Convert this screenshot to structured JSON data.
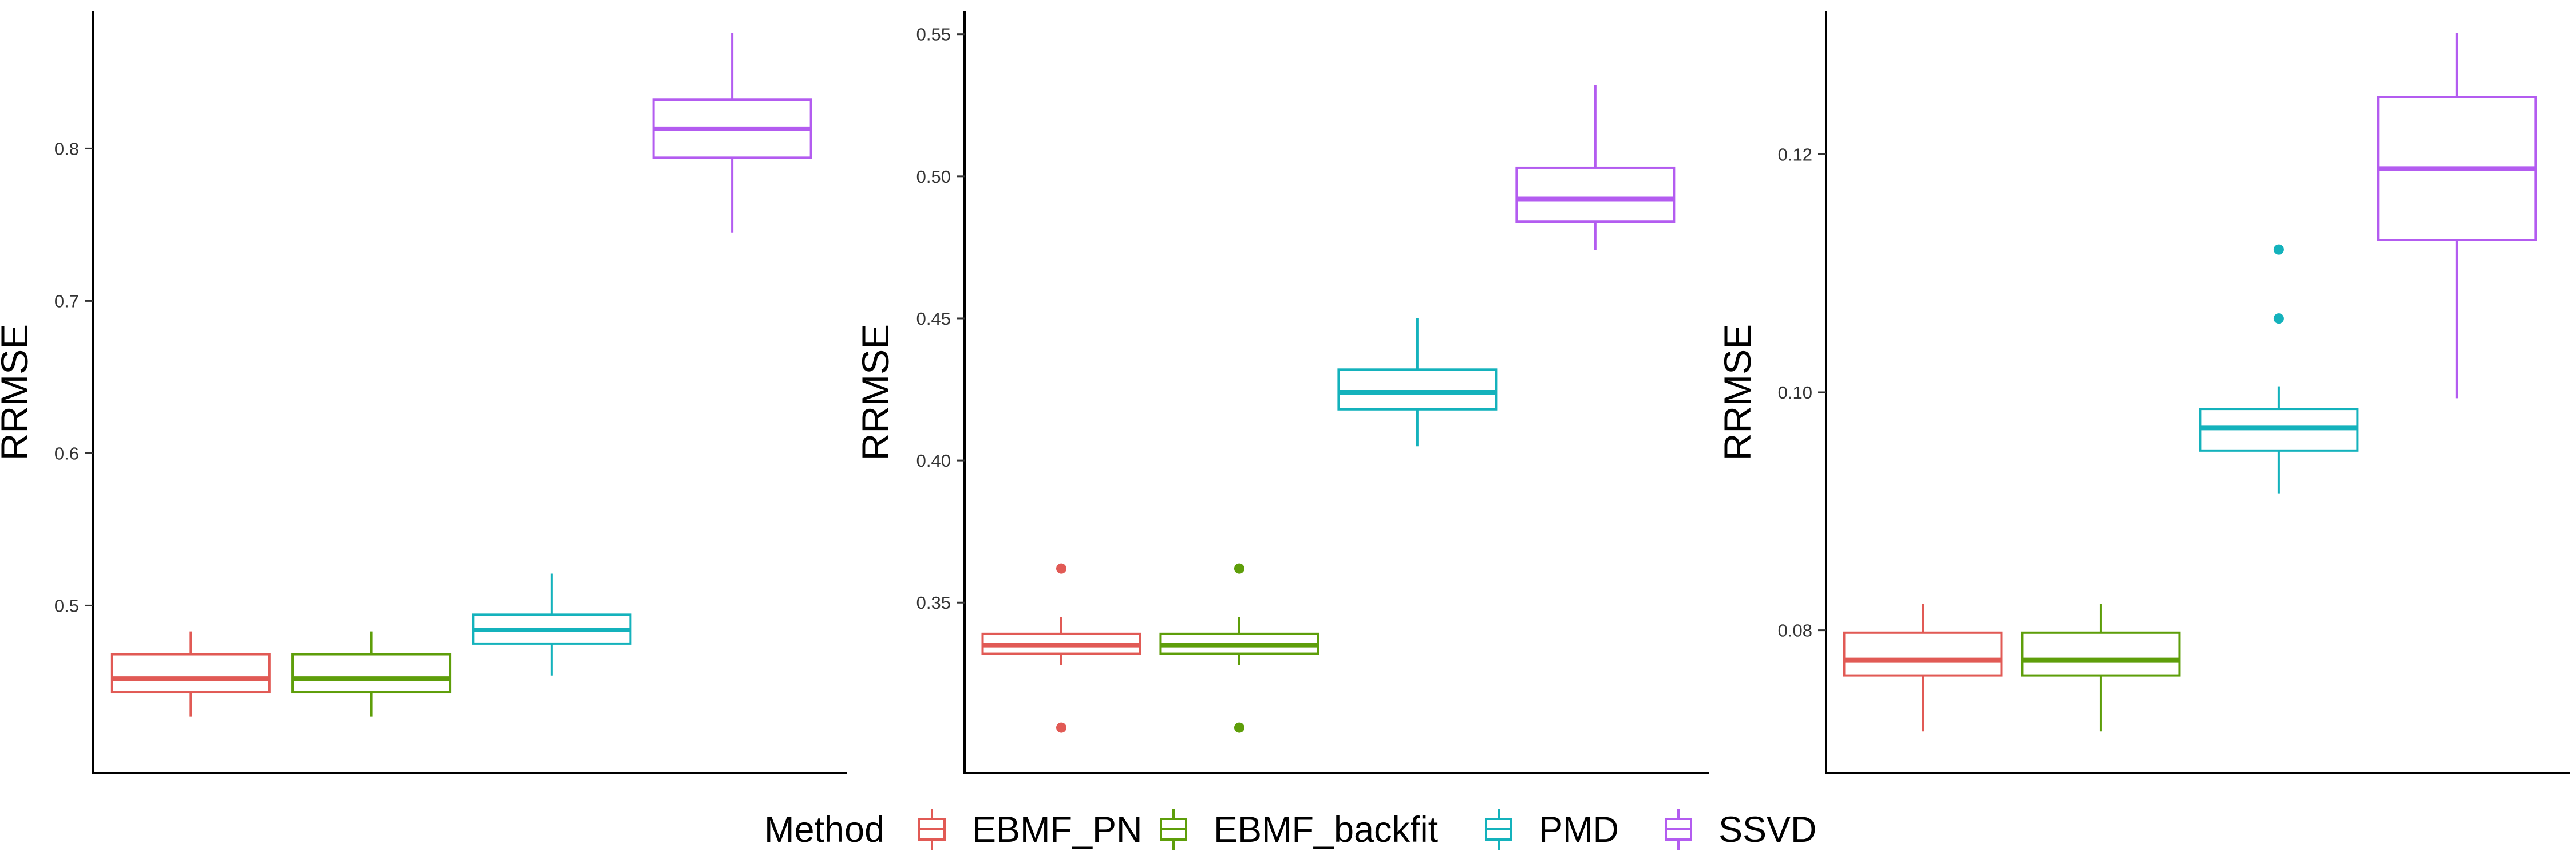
{
  "colors": {
    "EBMF_PN": "#E15A55",
    "EBMF_backfit": "#5E9E0A",
    "PMD": "#14B2BC",
    "SSVD": "#B35CF0"
  },
  "legend": {
    "title": "Method",
    "items": [
      "EBMF_PN",
      "EBMF_backfit",
      "PMD",
      "SSVD"
    ]
  },
  "chart_data": [
    {
      "type": "boxplot",
      "ylabel": "RRMSE",
      "ylim": [
        0.39,
        0.89
      ],
      "yticks": [
        {
          "value": 0.5,
          "label": "0.5"
        },
        {
          "value": 0.6,
          "label": "0.6"
        },
        {
          "value": 0.7,
          "label": "0.7"
        },
        {
          "value": 0.8,
          "label": "0.8"
        }
      ],
      "boxes": [
        {
          "method": "EBMF_PN",
          "min": 0.427,
          "q1": 0.443,
          "median": 0.452,
          "q3": 0.468,
          "max": 0.483,
          "outliers": []
        },
        {
          "method": "EBMF_backfit",
          "min": 0.427,
          "q1": 0.443,
          "median": 0.452,
          "q3": 0.468,
          "max": 0.483,
          "outliers": []
        },
        {
          "method": "PMD",
          "min": 0.454,
          "q1": 0.475,
          "median": 0.484,
          "q3": 0.494,
          "max": 0.521,
          "outliers": []
        },
        {
          "method": "SSVD",
          "min": 0.745,
          "q1": 0.794,
          "median": 0.813,
          "q3": 0.832,
          "max": 0.876,
          "outliers": []
        }
      ]
    },
    {
      "type": "boxplot",
      "ylabel": "RRMSE",
      "ylim": [
        0.29,
        0.558
      ],
      "yticks": [
        {
          "value": 0.35,
          "label": "0.35"
        },
        {
          "value": 0.4,
          "label": "0.40"
        },
        {
          "value": 0.45,
          "label": "0.45"
        },
        {
          "value": 0.5,
          "label": "0.50"
        },
        {
          "value": 0.55,
          "label": "0.55"
        }
      ],
      "boxes": [
        {
          "method": "EBMF_PN",
          "min": 0.328,
          "q1": 0.332,
          "median": 0.335,
          "q3": 0.339,
          "max": 0.345,
          "outliers": [
            0.362,
            0.306
          ]
        },
        {
          "method": "EBMF_backfit",
          "min": 0.328,
          "q1": 0.332,
          "median": 0.335,
          "q3": 0.339,
          "max": 0.345,
          "outliers": [
            0.362,
            0.306
          ]
        },
        {
          "method": "PMD",
          "min": 0.405,
          "q1": 0.418,
          "median": 0.424,
          "q3": 0.432,
          "max": 0.45,
          "outliers": []
        },
        {
          "method": "SSVD",
          "min": 0.474,
          "q1": 0.484,
          "median": 0.492,
          "q3": 0.503,
          "max": 0.532,
          "outliers": []
        }
      ]
    },
    {
      "type": "boxplot",
      "ylabel": "RRMSE",
      "ylim": [
        0.068,
        0.132
      ],
      "yticks": [
        {
          "value": 0.08,
          "label": "0.08"
        },
        {
          "value": 0.1,
          "label": "0.10"
        },
        {
          "value": 0.12,
          "label": "0.12"
        }
      ],
      "boxes": [
        {
          "method": "EBMF_PN",
          "min": 0.0715,
          "q1": 0.0762,
          "median": 0.0775,
          "q3": 0.0798,
          "max": 0.0822,
          "outliers": []
        },
        {
          "method": "EBMF_backfit",
          "min": 0.0715,
          "q1": 0.0762,
          "median": 0.0775,
          "q3": 0.0798,
          "max": 0.0822,
          "outliers": []
        },
        {
          "method": "PMD",
          "min": 0.0915,
          "q1": 0.0951,
          "median": 0.097,
          "q3": 0.0986,
          "max": 0.1005,
          "outliers": [
            0.112,
            0.1062
          ]
        },
        {
          "method": "SSVD",
          "min": 0.0995,
          "q1": 0.1128,
          "median": 0.1188,
          "q3": 0.1248,
          "max": 0.1302,
          "outliers": []
        }
      ]
    }
  ]
}
